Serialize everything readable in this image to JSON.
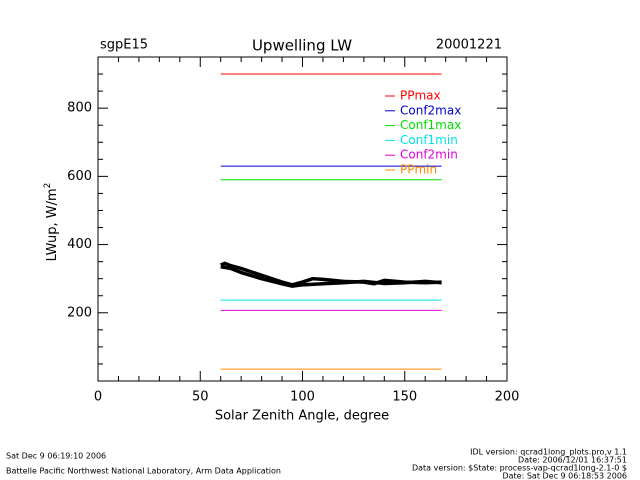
{
  "chart_data": {
    "type": "line",
    "title": "Upwelling  LW",
    "left_title": "sgpE15",
    "right_title": "20001221",
    "x_label": "Solar Zenith Angle, degree",
    "y_label": "LWup, W/m",
    "y_label_sup": "2",
    "xlim": [
      0,
      200
    ],
    "xticks": [
      0,
      50,
      100,
      150,
      200
    ],
    "xminor_ticks": [
      10,
      20,
      30,
      40,
      60,
      70,
      80,
      90,
      110,
      120,
      130,
      140,
      160,
      170,
      180,
      190
    ],
    "ylim": [
      0,
      950
    ],
    "yticks": [
      200,
      400,
      600,
      800
    ],
    "yminor_ticks": [
      50,
      100,
      150,
      250,
      300,
      350,
      450,
      500,
      550,
      650,
      700,
      750,
      850,
      900
    ],
    "series": [
      {
        "name": "PPmax",
        "color": "#ff0000",
        "x": [
          60,
          168
        ],
        "values": [
          900,
          900
        ]
      },
      {
        "name": "Conf2max",
        "color": "#0000cc",
        "x": [
          60,
          168
        ],
        "values": [
          630,
          630
        ]
      },
      {
        "name": "Conf1max",
        "color": "#00dd00",
        "x": [
          60,
          168
        ],
        "values": [
          590,
          590
        ]
      },
      {
        "name": "Conf1min",
        "color": "#00e5e5",
        "x": [
          60,
          168
        ],
        "values": [
          237,
          237
        ]
      },
      {
        "name": "Conf2min",
        "color": "#dd00dd",
        "x": [
          60,
          168
        ],
        "values": [
          207,
          207
        ]
      },
      {
        "name": "PPmin",
        "color": "#ff8800",
        "x": [
          60,
          168
        ],
        "values": [
          35,
          35
        ]
      },
      {
        "color": "#000000",
        "x": [
          60,
          62,
          65,
          70,
          75,
          80,
          85,
          90,
          95,
          100,
          105,
          110,
          120,
          130,
          135,
          140,
          150,
          160,
          168
        ],
        "values": [
          340,
          345,
          338,
          330,
          320,
          310,
          300,
          290,
          282,
          290,
          300,
          298,
          292,
          290,
          285,
          295,
          290,
          288,
          290
        ]
      },
      {
        "color": "#000000",
        "x": [
          60,
          65,
          70,
          80,
          90,
          95,
          100,
          110,
          120,
          130,
          140,
          150,
          160,
          168
        ],
        "values": [
          335,
          330,
          318,
          300,
          285,
          278,
          282,
          285,
          288,
          292,
          286,
          288,
          292,
          288
        ]
      }
    ],
    "footer": {
      "left": [
        "Sat Dec  9 06:19:10 2006",
        "Battelle Pacific Northwest National Laboratory, Arm Data Application"
      ],
      "right": [
        "IDL version: qcrad1long_plots.pro,v 1.1",
        "Date: 2006/12/01 16:37:51",
        "Data version: $State: process-vap-qcrad1long-2.1-0 $",
        "Date: Sat Dec  9 06:18:53 2006"
      ]
    }
  }
}
